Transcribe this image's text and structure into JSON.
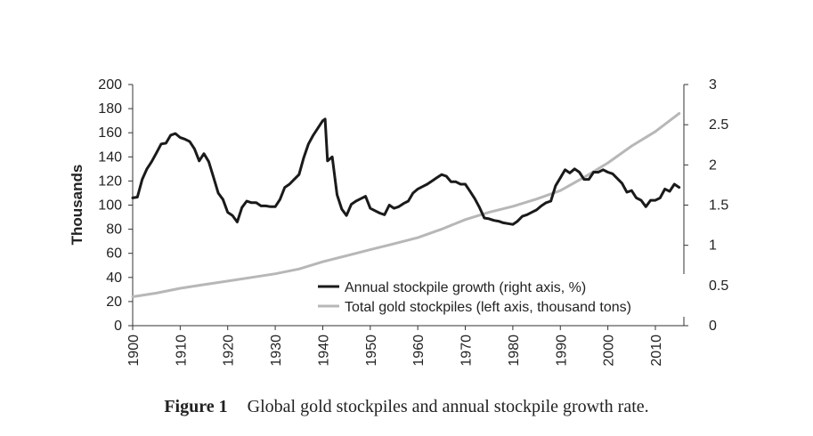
{
  "caption": {
    "label": "Figure 1",
    "text": "Global gold stockpiles and annual stockpile growth rate."
  },
  "chart_data": {
    "type": "line",
    "left_axis": {
      "title": "Thousands",
      "range": [
        0,
        200
      ],
      "ticks": [
        0,
        20,
        40,
        60,
        80,
        100,
        120,
        140,
        160,
        180,
        200
      ]
    },
    "right_axis": {
      "range": [
        0,
        3
      ],
      "ticks": [
        0,
        0.5,
        1,
        1.5,
        2,
        2.5,
        3
      ],
      "tick_labels": [
        "0",
        "0.5",
        "1",
        "1.5",
        "2",
        "2.5",
        "3"
      ]
    },
    "x_axis": {
      "range": [
        1900,
        2016
      ],
      "ticks": [
        1900,
        1910,
        1920,
        1930,
        1940,
        1950,
        1960,
        1970,
        1980,
        1990,
        2000,
        2010
      ]
    },
    "grid": false,
    "legend_position": "bottom-right",
    "series": [
      {
        "name": "Annual stockpile growth (right axis, %)",
        "axis": "right",
        "color": "#1a1a1a",
        "points": [
          [
            1900,
            1.59
          ],
          [
            1901,
            1.6
          ],
          [
            1902,
            1.82
          ],
          [
            1903,
            1.95
          ],
          [
            1904,
            2.04
          ],
          [
            1905,
            2.15
          ],
          [
            1906,
            2.26
          ],
          [
            1907,
            2.27
          ],
          [
            1908,
            2.37
          ],
          [
            1909,
            2.39
          ],
          [
            1910,
            2.34
          ],
          [
            1911,
            2.32
          ],
          [
            1912,
            2.29
          ],
          [
            1913,
            2.2
          ],
          [
            1914,
            2.05
          ],
          [
            1915,
            2.14
          ],
          [
            1916,
            2.04
          ],
          [
            1917,
            1.85
          ],
          [
            1918,
            1.65
          ],
          [
            1919,
            1.57
          ],
          [
            1920,
            1.41
          ],
          [
            1921,
            1.37
          ],
          [
            1922,
            1.29
          ],
          [
            1923,
            1.47
          ],
          [
            1924,
            1.55
          ],
          [
            1925,
            1.53
          ],
          [
            1926,
            1.53
          ],
          [
            1927,
            1.49
          ],
          [
            1928,
            1.49
          ],
          [
            1929,
            1.48
          ],
          [
            1930,
            1.48
          ],
          [
            1931,
            1.57
          ],
          [
            1932,
            1.72
          ],
          [
            1933,
            1.76
          ],
          [
            1934,
            1.82
          ],
          [
            1935,
            1.88
          ],
          [
            1936,
            2.09
          ],
          [
            1937,
            2.26
          ],
          [
            1938,
            2.37
          ],
          [
            1939,
            2.46
          ],
          [
            1940,
            2.55
          ],
          [
            1940.5,
            2.57
          ],
          [
            1941,
            2.05
          ],
          [
            1942,
            2.1
          ],
          [
            1943,
            1.63
          ],
          [
            1944,
            1.45
          ],
          [
            1945,
            1.37
          ],
          [
            1946,
            1.51
          ],
          [
            1947,
            1.55
          ],
          [
            1948,
            1.58
          ],
          [
            1949,
            1.61
          ],
          [
            1950,
            1.46
          ],
          [
            1951,
            1.43
          ],
          [
            1952,
            1.4
          ],
          [
            1953,
            1.38
          ],
          [
            1954,
            1.5
          ],
          [
            1955,
            1.46
          ],
          [
            1956,
            1.48
          ],
          [
            1957,
            1.52
          ],
          [
            1958,
            1.55
          ],
          [
            1959,
            1.65
          ],
          [
            1960,
            1.7
          ],
          [
            1961,
            1.73
          ],
          [
            1962,
            1.76
          ],
          [
            1963,
            1.8
          ],
          [
            1964,
            1.84
          ],
          [
            1965,
            1.88
          ],
          [
            1966,
            1.86
          ],
          [
            1967,
            1.79
          ],
          [
            1968,
            1.79
          ],
          [
            1969,
            1.76
          ],
          [
            1970,
            1.76
          ],
          [
            1971,
            1.67
          ],
          [
            1972,
            1.58
          ],
          [
            1973,
            1.47
          ],
          [
            1974,
            1.34
          ],
          [
            1975,
            1.33
          ],
          [
            1976,
            1.31
          ],
          [
            1977,
            1.3
          ],
          [
            1978,
            1.28
          ],
          [
            1979,
            1.27
          ],
          [
            1980,
            1.26
          ],
          [
            1981,
            1.3
          ],
          [
            1982,
            1.36
          ],
          [
            1983,
            1.38
          ],
          [
            1984,
            1.41
          ],
          [
            1985,
            1.44
          ],
          [
            1986,
            1.49
          ],
          [
            1987,
            1.53
          ],
          [
            1988,
            1.55
          ],
          [
            1989,
            1.74
          ],
          [
            1990,
            1.84
          ],
          [
            1991,
            1.94
          ],
          [
            1992,
            1.9
          ],
          [
            1993,
            1.95
          ],
          [
            1994,
            1.91
          ],
          [
            1995,
            1.82
          ],
          [
            1996,
            1.82
          ],
          [
            1997,
            1.91
          ],
          [
            1998,
            1.91
          ],
          [
            1999,
            1.94
          ],
          [
            2000,
            1.91
          ],
          [
            2001,
            1.89
          ],
          [
            2002,
            1.83
          ],
          [
            2003,
            1.77
          ],
          [
            2004,
            1.66
          ],
          [
            2005,
            1.68
          ],
          [
            2006,
            1.59
          ],
          [
            2007,
            1.56
          ],
          [
            2008,
            1.48
          ],
          [
            2009,
            1.56
          ],
          [
            2010,
            1.56
          ],
          [
            2011,
            1.59
          ],
          [
            2012,
            1.7
          ],
          [
            2013,
            1.67
          ],
          [
            2014,
            1.76
          ],
          [
            2015,
            1.72
          ]
        ]
      },
      {
        "name": "Total gold stockpiles (left axis, thousand tons)",
        "axis": "left",
        "color": "#b7b7b7",
        "points": [
          [
            1900,
            24
          ],
          [
            1905,
            27
          ],
          [
            1910,
            31
          ],
          [
            1915,
            34
          ],
          [
            1920,
            37
          ],
          [
            1925,
            40
          ],
          [
            1930,
            43
          ],
          [
            1935,
            47
          ],
          [
            1940,
            53
          ],
          [
            1945,
            58
          ],
          [
            1950,
            63
          ],
          [
            1955,
            68
          ],
          [
            1960,
            73
          ],
          [
            1965,
            80
          ],
          [
            1970,
            88
          ],
          [
            1975,
            94
          ],
          [
            1980,
            99
          ],
          [
            1985,
            105
          ],
          [
            1990,
            112
          ],
          [
            1995,
            123
          ],
          [
            2000,
            135
          ],
          [
            2005,
            149
          ],
          [
            2010,
            161
          ],
          [
            2015,
            176
          ]
        ]
      }
    ]
  }
}
